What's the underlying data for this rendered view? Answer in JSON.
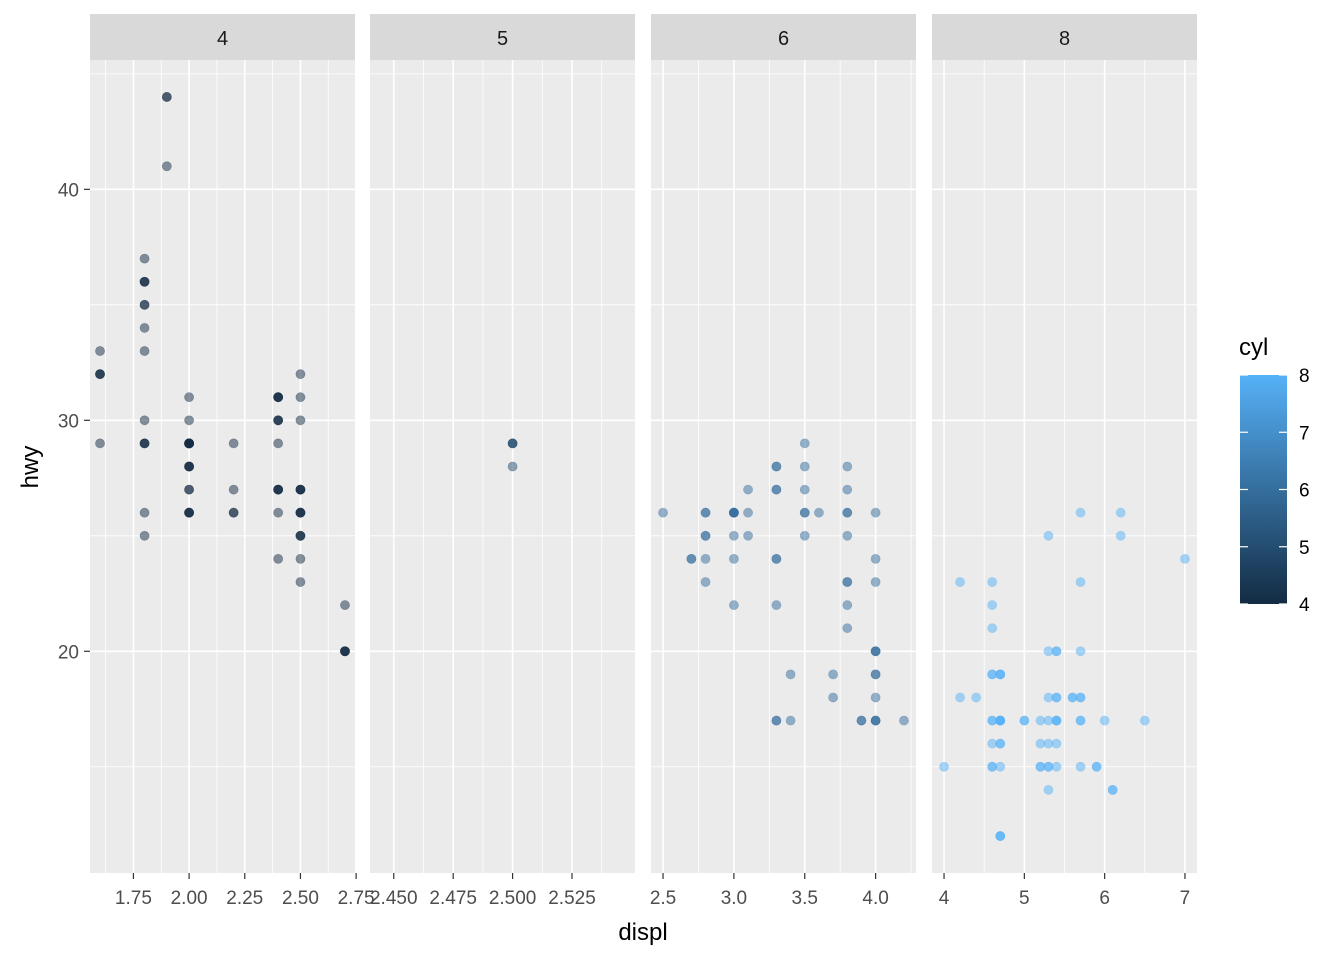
{
  "chart_data": {
    "type": "scatter",
    "facet_var": "cyl",
    "xlabel": "displ",
    "ylabel": "hwy",
    "y_range": [
      10.4,
      45.6
    ],
    "y_ticks": [
      20,
      30,
      40
    ],
    "legend": {
      "title": "cyl",
      "placement": "right",
      "min": 4,
      "max": 8,
      "ticks": [
        4,
        5,
        6,
        7,
        8
      ],
      "low_color": "#132b43",
      "high_color": "#56b1f7"
    },
    "point_alpha": 0.5,
    "panels": [
      {
        "label": "4",
        "cyl": 4,
        "x_range": [
          1.555,
          2.745
        ],
        "x_ticks": [
          1.75,
          2.0,
          2.25,
          2.5,
          2.75
        ],
        "x_tick_labels": [
          "1.75",
          "2.00",
          "2.25",
          "2.50",
          "2.75"
        ],
        "points": [
          [
            1.8,
            29
          ],
          [
            1.8,
            29
          ],
          [
            2.0,
            31
          ],
          [
            2.0,
            30
          ],
          [
            1.8,
            26
          ],
          [
            1.8,
            25
          ],
          [
            2.0,
            28
          ],
          [
            2.0,
            27
          ],
          [
            2.4,
            30
          ],
          [
            2.4,
            31
          ],
          [
            2.4,
            27
          ],
          [
            2.5,
            27
          ],
          [
            2.5,
            25
          ],
          [
            2.5,
            25
          ],
          [
            2.5,
            25
          ],
          [
            2.5,
            26
          ],
          [
            2.5,
            23
          ],
          [
            2.2,
            26
          ],
          [
            2.2,
            27
          ],
          [
            2.5,
            26
          ],
          [
            2.5,
            26
          ],
          [
            2.2,
            29
          ],
          [
            2.2,
            26
          ],
          [
            2.4,
            31
          ],
          [
            2.4,
            30
          ],
          [
            2.4,
            26
          ],
          [
            2.4,
            29
          ],
          [
            2.4,
            27
          ],
          [
            2.4,
            31
          ],
          [
            2.4,
            31
          ],
          [
            2.4,
            24
          ],
          [
            2.5,
            24
          ],
          [
            1.8,
            34
          ],
          [
            1.8,
            30
          ],
          [
            2.0,
            26
          ],
          [
            2.0,
            29
          ],
          [
            2.0,
            29
          ],
          [
            2.0,
            28
          ],
          [
            2.5,
            30
          ],
          [
            2.5,
            31
          ],
          [
            1.6,
            33
          ],
          [
            1.6,
            32
          ],
          [
            1.6,
            32
          ],
          [
            1.6,
            29
          ],
          [
            1.6,
            32
          ],
          [
            1.8,
            35
          ],
          [
            1.8,
            36
          ],
          [
            1.8,
            36
          ],
          [
            1.8,
            37
          ],
          [
            1.8,
            35
          ],
          [
            1.9,
            44
          ],
          [
            1.9,
            44
          ],
          [
            1.9,
            41
          ],
          [
            2.0,
            29
          ],
          [
            2.0,
            26
          ],
          [
            2.0,
            28
          ],
          [
            2.0,
            29
          ],
          [
            2.0,
            26
          ],
          [
            2.0,
            27
          ],
          [
            2.5,
            27
          ],
          [
            2.5,
            32
          ],
          [
            2.7,
            20
          ],
          [
            2.7,
            20
          ],
          [
            2.7,
            22
          ],
          [
            2.7,
            20
          ],
          [
            2.7,
            20
          ],
          [
            2.4,
            27
          ],
          [
            2.4,
            30
          ],
          [
            2.4,
            27
          ],
          [
            2.5,
            26
          ],
          [
            2.5,
            27
          ],
          [
            1.8,
            29
          ],
          [
            1.8,
            33
          ],
          [
            2.0,
            29
          ],
          [
            2.0,
            29
          ],
          [
            2.0,
            28
          ],
          [
            2.0,
            29
          ],
          [
            2.0,
            26
          ],
          [
            2.0,
            29
          ],
          [
            2.5,
            27
          ],
          [
            1.8,
            36
          ]
        ]
      },
      {
        "label": "5",
        "cyl": 5,
        "x_range": [
          2.44,
          2.5515
        ],
        "x_ticks": [
          2.45,
          2.475,
          2.5,
          2.525
        ],
        "x_tick_labels": [
          "2.450",
          "2.475",
          "2.500",
          "2.525"
        ],
        "points": [
          [
            2.5,
            29
          ],
          [
            2.5,
            29
          ],
          [
            2.5,
            28
          ],
          [
            2.5,
            29
          ]
        ]
      },
      {
        "label": "6",
        "cyl": 6,
        "x_range": [
          2.415,
          4.285
        ],
        "x_ticks": [
          2.5,
          3.0,
          3.5,
          4.0
        ],
        "x_tick_labels": [
          "2.5",
          "3.0",
          "3.5",
          "4.0"
        ],
        "points": [
          [
            2.8,
            26
          ],
          [
            2.8,
            25
          ],
          [
            3.1,
            27
          ],
          [
            2.8,
            25
          ],
          [
            3.1,
            25
          ],
          [
            3.3,
            22
          ],
          [
            3.3,
            24
          ],
          [
            3.3,
            24
          ],
          [
            3.8,
            25
          ],
          [
            3.8,
            23
          ],
          [
            3.8,
            22
          ],
          [
            3.5,
            26
          ],
          [
            4.0,
            23
          ],
          [
            4.0,
            20
          ],
          [
            4.0,
            17
          ],
          [
            3.5,
            25
          ],
          [
            4.2,
            17
          ],
          [
            3.8,
            26
          ],
          [
            4.0,
            26
          ],
          [
            4.0,
            24
          ],
          [
            4.0,
            19
          ],
          [
            4.0,
            17
          ],
          [
            3.0,
            22
          ],
          [
            3.3,
            28
          ],
          [
            3.3,
            27
          ],
          [
            3.7,
            19
          ],
          [
            3.7,
            18
          ],
          [
            3.9,
            17
          ],
          [
            3.5,
            29
          ],
          [
            3.5,
            27
          ],
          [
            3.3,
            17
          ],
          [
            3.4,
            17
          ],
          [
            2.7,
            24
          ],
          [
            2.7,
            24
          ],
          [
            3.8,
            28
          ],
          [
            3.8,
            27
          ],
          [
            3.3,
            28
          ],
          [
            3.4,
            19
          ],
          [
            3.0,
            26
          ],
          [
            3.5,
            26
          ],
          [
            2.5,
            26
          ],
          [
            2.8,
            24
          ],
          [
            3.0,
            24
          ],
          [
            3.0,
            26
          ],
          [
            3.0,
            26
          ],
          [
            3.6,
            26
          ],
          [
            3.8,
            21
          ],
          [
            3.8,
            23
          ],
          [
            4.0,
            20
          ],
          [
            4.0,
            18
          ],
          [
            3.1,
            26
          ],
          [
            2.8,
            23
          ],
          [
            3.0,
            25
          ],
          [
            3.3,
            17
          ],
          [
            3.9,
            17
          ],
          [
            3.5,
            28
          ],
          [
            3.3,
            27
          ],
          [
            2.8,
            26
          ],
          [
            3.0,
            26
          ],
          [
            3.8,
            26
          ],
          [
            3.0,
            26
          ],
          [
            4.0,
            19
          ],
          [
            4.0,
            20
          ],
          [
            4.0,
            17
          ]
        ]
      },
      {
        "label": "8",
        "cyl": 8,
        "x_range": [
          3.85,
          7.15
        ],
        "x_ticks": [
          4,
          5,
          6,
          7
        ],
        "x_tick_labels": [
          "4",
          "5",
          "6",
          "7"
        ],
        "points": [
          [
            5.7,
            26
          ],
          [
            5.7,
            23
          ],
          [
            6.2,
            26
          ],
          [
            6.2,
            25
          ],
          [
            7.0,
            24
          ],
          [
            5.3,
            20
          ],
          [
            5.3,
            15
          ],
          [
            5.7,
            20
          ],
          [
            6.5,
            17
          ],
          [
            4.2,
            23
          ],
          [
            4.6,
            23
          ],
          [
            4.6,
            22
          ],
          [
            4.6,
            21
          ],
          [
            5.4,
            20
          ],
          [
            5.2,
            17
          ],
          [
            5.2,
            16
          ],
          [
            5.7,
            17
          ],
          [
            5.9,
            15
          ],
          [
            4.7,
            17
          ],
          [
            4.7,
            12
          ],
          [
            4.7,
            17
          ],
          [
            5.2,
            15
          ],
          [
            5.7,
            17
          ],
          [
            5.9,
            15
          ],
          [
            4.6,
            16
          ],
          [
            5.4,
            17
          ],
          [
            5.4,
            16
          ],
          [
            4.0,
            15
          ],
          [
            4.2,
            18
          ],
          [
            4.4,
            18
          ],
          [
            4.6,
            19
          ],
          [
            4.6,
            15
          ],
          [
            4.7,
            17
          ],
          [
            4.7,
            19
          ],
          [
            4.7,
            12
          ],
          [
            5.0,
            17
          ],
          [
            5.3,
            17
          ],
          [
            5.3,
            18
          ],
          [
            5.3,
            25
          ],
          [
            5.7,
            18
          ],
          [
            6.0,
            17
          ],
          [
            5.4,
            18
          ],
          [
            5.4,
            15
          ],
          [
            6.1,
            14
          ],
          [
            5.3,
            14
          ],
          [
            5.7,
            15
          ],
          [
            4.6,
            17
          ],
          [
            5.4,
            17
          ],
          [
            5.6,
            18
          ],
          [
            4.7,
            19
          ],
          [
            4.7,
            17
          ],
          [
            4.6,
            17
          ],
          [
            5.0,
            17
          ],
          [
            4.7,
            15
          ],
          [
            5.3,
            15
          ],
          [
            5.4,
            18
          ],
          [
            6.1,
            14
          ],
          [
            5.2,
            15
          ],
          [
            5.3,
            16
          ],
          [
            4.7,
            16
          ],
          [
            5.7,
            18
          ],
          [
            4.6,
            15
          ],
          [
            4.7,
            17
          ],
          [
            4.7,
            19
          ],
          [
            5.4,
            17
          ],
          [
            4.7,
            16
          ],
          [
            4.6,
            19
          ],
          [
            4.7,
            12
          ],
          [
            5.6,
            18
          ],
          [
            5.4,
            20
          ]
        ]
      }
    ]
  }
}
